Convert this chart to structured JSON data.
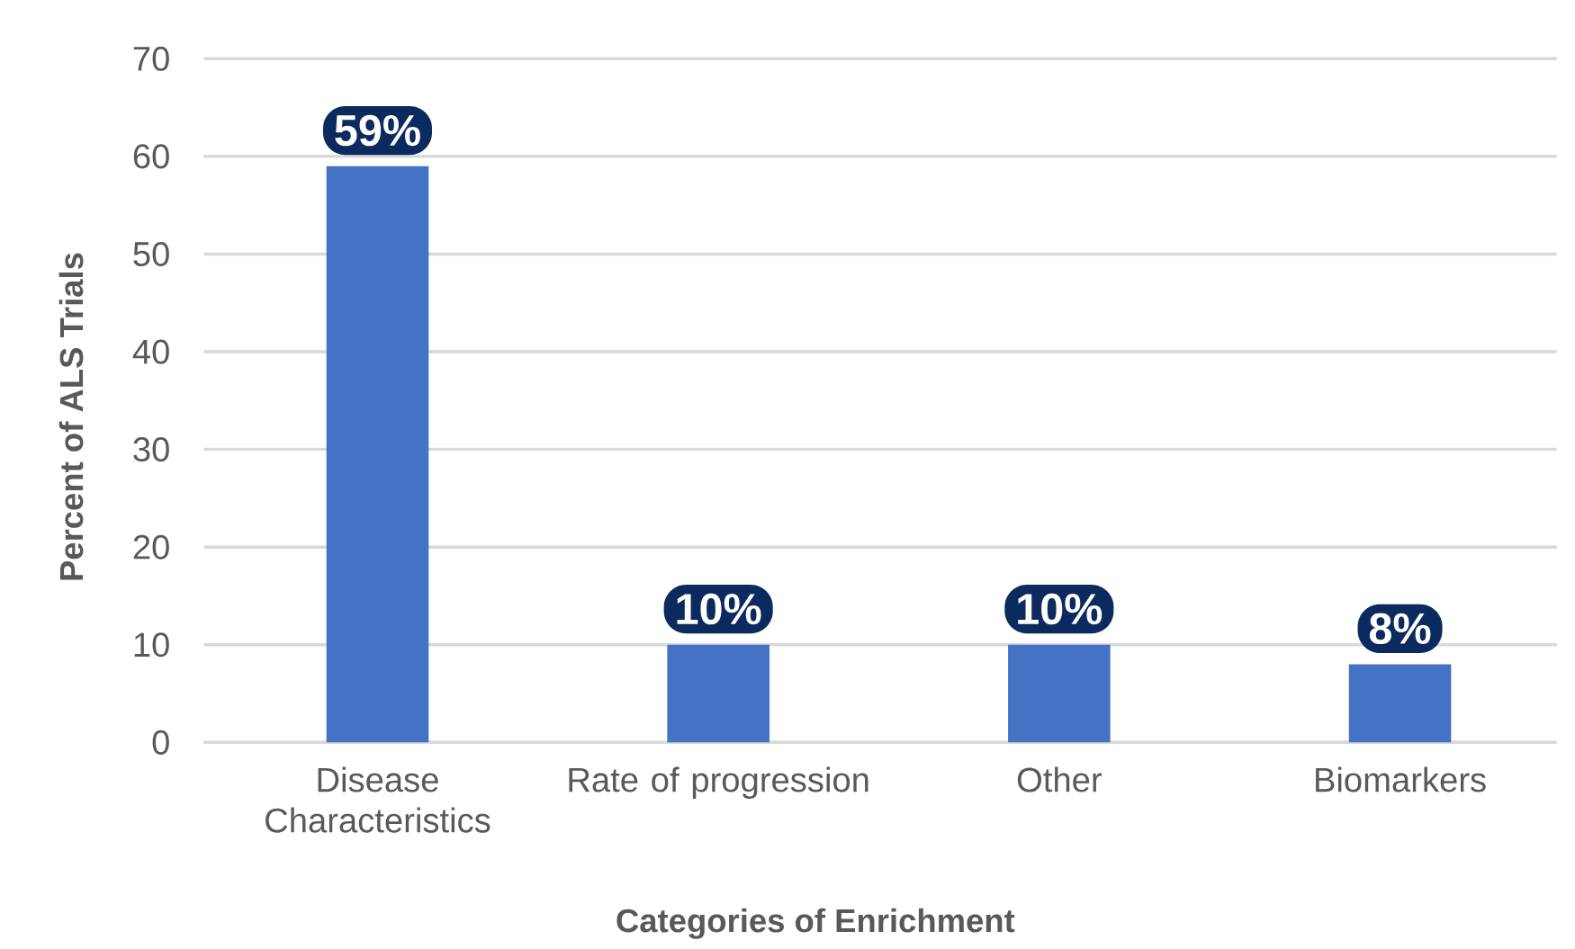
{
  "chart_data": {
    "type": "bar",
    "xlabel": "Categories of Enrichment",
    "ylabel": "Percent of ALS Trials",
    "categories": [
      "Disease Characteristics",
      "Rate of progression",
      "Other",
      "Biomarkers"
    ],
    "values": [
      59,
      10,
      10,
      8
    ],
    "value_labels": [
      "59%",
      "10%",
      "10%",
      "8%"
    ],
    "color": "#4472c4",
    "ylim": [
      0,
      70
    ],
    "yticks": [
      0,
      10,
      20,
      30,
      40,
      50,
      60,
      70
    ],
    "grid": "y"
  }
}
